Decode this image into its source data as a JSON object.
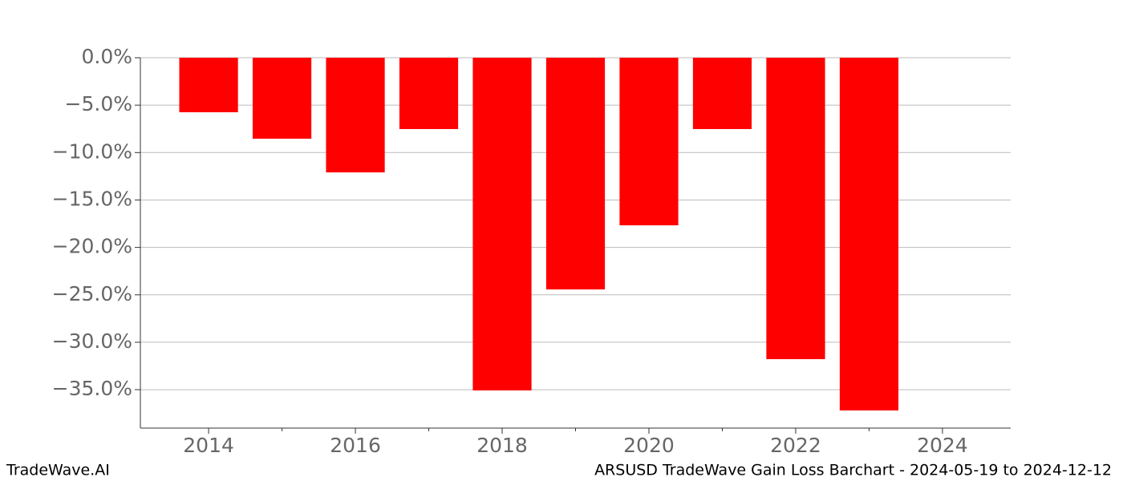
{
  "chart_data": {
    "type": "bar",
    "title": "ARSUSD TradeWave Gain Loss Barchart - 2024-05-19 to 2024-12-12",
    "watermark": "TradeWave.AI",
    "x": [
      2014,
      2015,
      2016,
      2017,
      2018,
      2019,
      2020,
      2021,
      2022,
      2023
    ],
    "values": [
      -5.75,
      -8.54,
      -12.09,
      -7.52,
      -35.08,
      -24.43,
      -17.67,
      -7.52,
      -31.78,
      -37.19
    ],
    "color": "#ff0000",
    "bar_width": 0.8,
    "xlim": [
      2013.07,
      2024.93
    ],
    "xticks": [
      2014,
      2016,
      2018,
      2020,
      2022,
      2024
    ],
    "x_minor_ticks": [
      2015,
      2017,
      2019,
      2021,
      2023
    ],
    "ylim": [
      -39.05,
      0
    ],
    "yticks": [
      {
        "value": 0,
        "label": "0.0%"
      },
      {
        "value": -5,
        "label": "−5.0%"
      },
      {
        "value": -10,
        "label": "−10.0%"
      },
      {
        "value": -15,
        "label": "−15.0%"
      },
      {
        "value": -20,
        "label": "−20.0%"
      },
      {
        "value": -25,
        "label": "−25.0%"
      },
      {
        "value": -30,
        "label": "−30.0%"
      },
      {
        "value": -35,
        "label": "−35.0%"
      }
    ],
    "grid": true
  }
}
